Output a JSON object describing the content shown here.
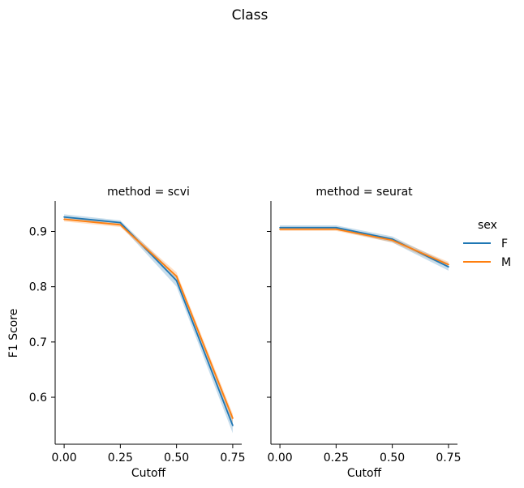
{
  "chart_data": {
    "type": "line",
    "suptitle": "Class",
    "ylabel": "F1 Score",
    "ylim": [
      0.515,
      0.955
    ],
    "yticks": [
      0.6,
      0.7,
      0.8,
      0.9
    ],
    "ytick_labels": [
      "0.6",
      "0.7",
      "0.8",
      "0.9"
    ],
    "xlim": [
      -0.04,
      0.79
    ],
    "xticks": [
      0.0,
      0.25,
      0.5,
      0.75
    ],
    "xtick_labels": [
      "0.00",
      "0.25",
      "0.50",
      "0.75"
    ],
    "grid": false,
    "legend": {
      "title": "sex",
      "placement": "right",
      "entries": [
        "F",
        "M"
      ]
    },
    "colors": {
      "F": "#1f77b4",
      "M": "#ff7f0e",
      "axis": "#000000"
    },
    "panels": [
      {
        "title": "method = scvi",
        "xlabel": "Cutoff",
        "x": [
          0.0,
          0.25,
          0.5,
          0.75
        ],
        "series": [
          {
            "name": "F",
            "values": [
              0.926,
              0.916,
              0.811,
              0.549
            ],
            "ci_low": [
              0.921,
              0.911,
              0.8,
              0.535
            ],
            "ci_high": [
              0.931,
              0.92,
              0.82,
              0.562
            ]
          },
          {
            "name": "M",
            "values": [
              0.922,
              0.912,
              0.819,
              0.562
            ],
            "ci_low": [
              0.918,
              0.908,
              0.813,
              0.553
            ],
            "ci_high": [
              0.926,
              0.916,
              0.826,
              0.57
            ]
          }
        ]
      },
      {
        "title": "method = seurat",
        "xlabel": "Cutoff",
        "x": [
          0.0,
          0.25,
          0.5,
          0.75
        ],
        "series": [
          {
            "name": "F",
            "values": [
              0.907,
              0.907,
              0.886,
              0.836
            ],
            "ci_low": [
              0.903,
              0.903,
              0.88,
              0.829
            ],
            "ci_high": [
              0.911,
              0.911,
              0.891,
              0.842
            ]
          },
          {
            "name": "M",
            "values": [
              0.904,
              0.904,
              0.884,
              0.84
            ],
            "ci_low": [
              0.901,
              0.901,
              0.88,
              0.835
            ],
            "ci_high": [
              0.907,
              0.907,
              0.888,
              0.845
            ]
          }
        ]
      }
    ]
  }
}
